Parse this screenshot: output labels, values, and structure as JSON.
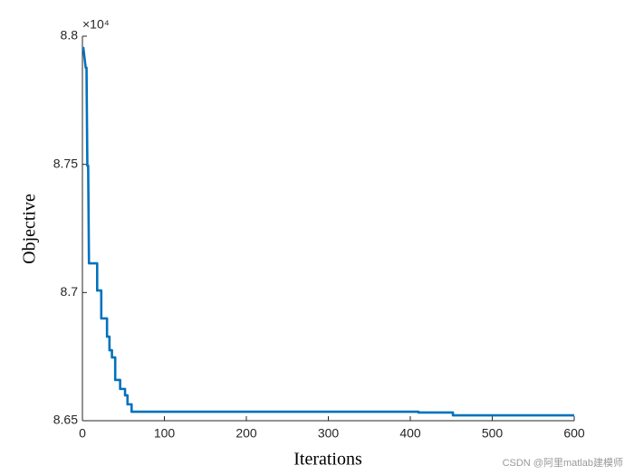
{
  "chart_data": {
    "type": "line",
    "xlabel": "Iterations",
    "ylabel": "Objective",
    "y_exponent_label": "×10⁴",
    "watermark": "CSDN @阿里matlab建模师",
    "x": [
      1,
      4,
      5,
      6,
      7,
      8,
      18,
      18,
      23,
      23,
      30,
      30,
      33,
      33,
      36,
      36,
      40,
      40,
      46,
      46,
      52,
      52,
      55,
      55,
      60,
      60,
      410,
      410,
      452,
      452,
      600
    ],
    "series": [
      {
        "color": "#0072bd",
        "values": [
          8.7958,
          8.7877,
          8.7877,
          8.7495,
          8.7495,
          8.7114,
          8.7114,
          8.7008,
          8.7008,
          8.6899,
          8.6899,
          8.6828,
          8.6828,
          8.6775,
          8.6775,
          8.6747,
          8.6747,
          8.6659,
          8.6659,
          8.6624,
          8.6624,
          8.6599,
          8.6599,
          8.6564,
          8.6564,
          8.6535,
          8.6535,
          8.6532,
          8.6532,
          8.6521,
          8.6521
        ]
      }
    ],
    "xlim": [
      0,
      600
    ],
    "xticks": [
      0,
      100,
      200,
      300,
      400,
      500,
      600
    ],
    "ylim": [
      8.65,
      8.8
    ],
    "yticks": [
      8.65,
      8.7,
      8.75,
      8.8
    ],
    "grid": false
  }
}
